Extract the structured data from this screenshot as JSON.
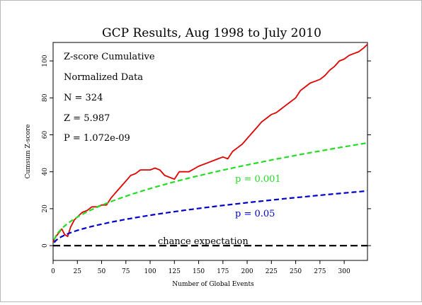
{
  "chart_data": {
    "type": "line",
    "title": "GCP Results, Aug 1998 to July 2010",
    "xlabel": "Number of Global Events",
    "ylabel": "Cumsum Z-score",
    "xlim": [
      0,
      324
    ],
    "ylim": [
      -8,
      110
    ],
    "xticks": [
      0,
      25,
      50,
      75,
      100,
      125,
      150,
      175,
      200,
      225,
      250,
      275,
      300
    ],
    "yticks": [
      0,
      20,
      40,
      60,
      80,
      100
    ],
    "grid": false,
    "stats": [
      "Z-score Cumulative",
      "Normalized Data",
      "N = 324",
      "Z = 5.987",
      "P = 1.072e-09"
    ],
    "series": [
      {
        "color": "#e00000",
        "style": "solid",
        "x": [
          0,
          3,
          6,
          9,
          12,
          15,
          18,
          22,
          26,
          30,
          35,
          40,
          45,
          50,
          55,
          60,
          65,
          70,
          75,
          80,
          85,
          90,
          95,
          100,
          105,
          110,
          115,
          120,
          125,
          130,
          140,
          150,
          160,
          170,
          175,
          180,
          185,
          190,
          195,
          200,
          205,
          210,
          215,
          220,
          225,
          230,
          235,
          240,
          245,
          250,
          255,
          260,
          265,
          270,
          275,
          280,
          285,
          290,
          295,
          300,
          305,
          310,
          315,
          320,
          324
        ],
        "y": [
          2,
          5,
          7,
          9,
          6,
          5,
          10,
          14,
          16,
          18,
          19,
          21,
          21,
          22,
          22,
          26,
          29,
          32,
          35,
          38,
          39,
          41,
          41,
          41,
          42,
          41,
          38,
          37,
          36,
          40,
          40,
          43,
          45,
          47,
          48,
          47,
          51,
          53,
          55,
          58,
          61,
          64,
          67,
          69,
          71,
          72,
          74,
          76,
          78,
          80,
          84,
          86,
          88,
          89,
          90,
          92,
          95,
          97,
          100,
          101,
          103,
          104,
          105,
          107,
          109
        ]
      },
      {
        "name": "p = 0.001",
        "color": "#22dd22",
        "style": "dashed",
        "formula_coefficient": 3.09,
        "x_start": 1,
        "x_end": 324
      },
      {
        "name": "p = 0.05",
        "color": "#0000cc",
        "style": "dashed",
        "formula_coefficient": 1.645,
        "x_start": 1,
        "x_end": 324
      },
      {
        "name": "chance expectation",
        "color": "#000000",
        "style": "dashed",
        "x": [
          0,
          324
        ],
        "y": [
          0,
          0
        ]
      }
    ]
  }
}
